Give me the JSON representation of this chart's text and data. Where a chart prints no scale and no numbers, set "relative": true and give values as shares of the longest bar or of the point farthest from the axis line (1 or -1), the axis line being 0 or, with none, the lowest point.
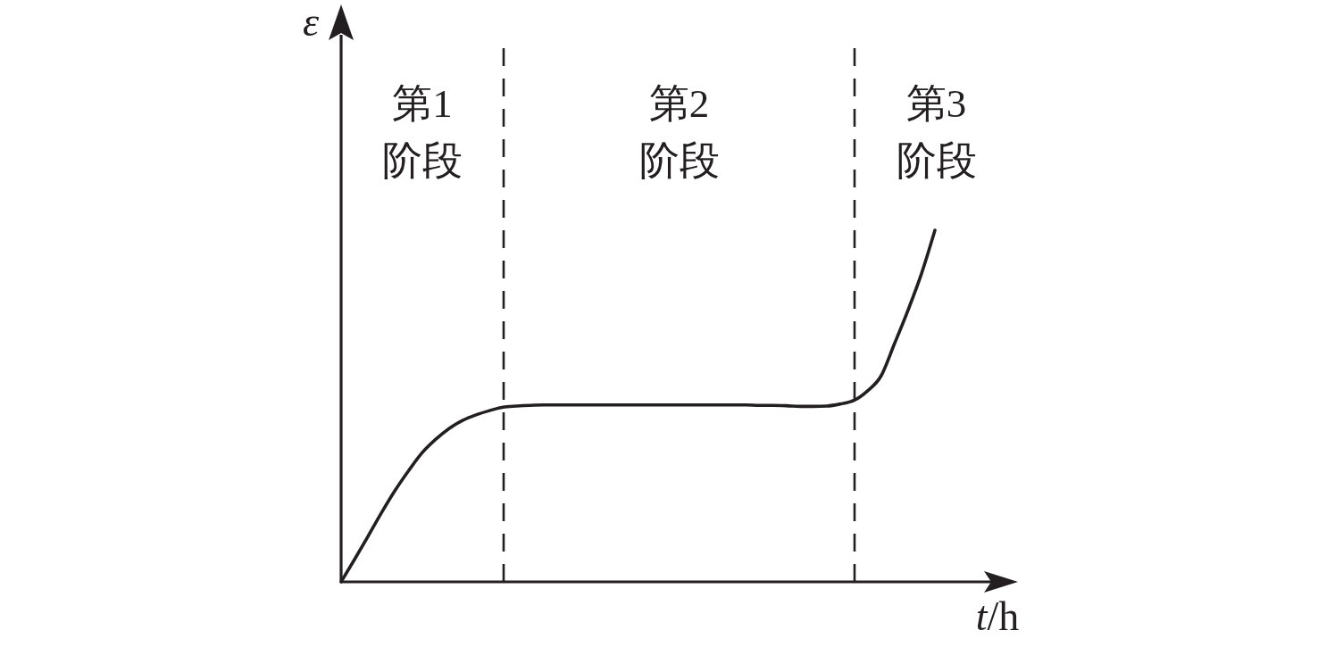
{
  "chart_data": {
    "type": "line",
    "relative": true,
    "xlabel": "t/h",
    "ylabel": "ε",
    "categories": [
      null,
      null,
      null,
      null,
      null,
      null,
      null,
      null,
      null,
      null,
      null,
      null,
      null,
      null,
      null,
      null,
      null,
      null,
      null,
      null,
      null,
      null,
      null,
      null,
      null,
      null,
      null,
      null,
      null,
      null,
      null,
      null,
      null,
      null,
      null,
      null,
      null,
      null,
      null,
      null,
      null,
      null,
      null,
      null,
      null
    ],
    "series": [
      {
        "color": "#231f20",
        "values": [
          0,
          0.064,
          0.13,
          0.197,
          0.26,
          0.316,
          0.367,
          0.405,
          0.436,
          0.459,
          0.475,
          0.487,
          0.497,
          0.5,
          0.502,
          0.503,
          0.503,
          0.503,
          0.503,
          0.503,
          0.503,
          0.503,
          0.503,
          0.503,
          0.503,
          0.503,
          0.503,
          0.503,
          0.503,
          0.503,
          0.503,
          0.502,
          0.502,
          0.501,
          0.499,
          0.499,
          0.5,
          0.506,
          0.516,
          0.543,
          0.585,
          0.677,
          0.772,
          0.876,
          1
        ]
      }
    ],
    "annotations": [
      "第1\n阶段",
      "第2\n阶段",
      "第3\n阶段"
    ]
  }
}
